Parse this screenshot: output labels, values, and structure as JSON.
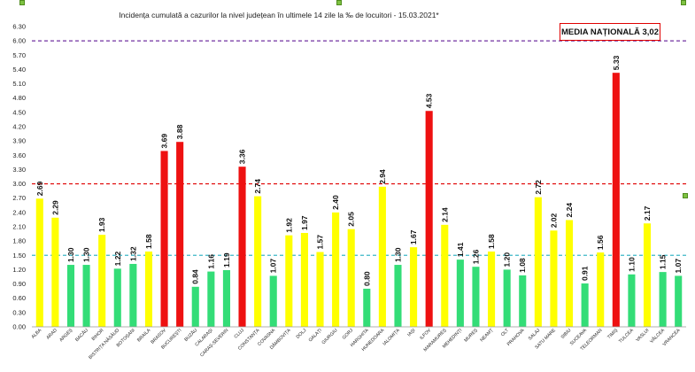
{
  "chart_data": {
    "type": "bar",
    "title": "Incidența cumulată a cazurilor la nivel județean în ultimele 14 zile    la ‰ de locuitori  - 15.03.2021*",
    "legend_text": "MEDIA NAȚIONALĂ 3,02",
    "categories": [
      "ALBA",
      "ARAD",
      "ARGEȘ",
      "BACĂU",
      "BIHOR",
      "BISTRIȚA NĂSĂUD",
      "BOTOȘANI",
      "BRAILA",
      "BRASOV",
      "BUCUREȘTI",
      "BUZĂU",
      "CALARAȘI",
      "CARAȘ-SEVERIN",
      "CLUJ",
      "CONSTANȚA",
      "COVASNA",
      "DÂMBOVIȚA",
      "DOLJ",
      "GALAȚI",
      "GIURGIU",
      "GORJ",
      "HARGHITA",
      "HUNEDOARA",
      "IALOMIȚA",
      "IAȘI",
      "ILFOV",
      "MARAMUREȘ",
      "MEHEDINȚI",
      "MUREȘ",
      "NEAMȚ",
      "OLT",
      "PRAHOVA",
      "SALAJ",
      "SATU MARE",
      "SIBIU",
      "SUCEAVA",
      "TELEORMAN",
      "TIMIȘ",
      "TULCEA",
      "VASLUI",
      "VÂLCEA",
      "VRANCEA"
    ],
    "values": [
      2.69,
      2.29,
      1.3,
      1.3,
      1.93,
      1.22,
      1.32,
      1.58,
      3.69,
      3.88,
      0.84,
      1.16,
      1.19,
      3.36,
      2.74,
      1.07,
      1.92,
      1.97,
      1.57,
      2.4,
      2.05,
      0.8,
      2.94,
      1.3,
      1.67,
      4.53,
      2.14,
      1.41,
      1.26,
      1.58,
      1.2,
      1.08,
      2.72,
      2.02,
      2.24,
      0.91,
      1.56,
      5.33,
      1.1,
      2.17,
      1.15,
      1.07
    ],
    "value_labels": [
      "2.69",
      "2.29",
      "1.30",
      "1.30",
      "1.93",
      "1.22",
      "1.32",
      "1.58",
      "3.69",
      "3.88",
      "0.84",
      "1.16",
      "1.19",
      "3.36",
      "2.74",
      "1.07",
      "1.92",
      "1.97",
      "1.57",
      "2.40",
      "2.05",
      "0.80",
      "2.94",
      "1.30",
      "1.67",
      "4.53",
      "2.14",
      "1.41",
      "1.26",
      "1.58",
      "1.20",
      "1.08",
      "2.72",
      "2.02",
      "2.24",
      "0.91",
      "1.56",
      "5.33",
      "1.10",
      "2.17",
      "1.15",
      "1.07"
    ],
    "yticks": [
      "0.00",
      "0.30",
      "0.60",
      "0.90",
      "1.20",
      "1.50",
      "1.80",
      "2.10",
      "2.40",
      "2.70",
      "3.00",
      "3.30",
      "3.60",
      "3.90",
      "4.20",
      "4.50",
      "4.80",
      "5.10",
      "5.40",
      "5.70",
      "6.00",
      "6.30"
    ],
    "ylim": [
      0,
      6.3
    ],
    "thresholds": [
      {
        "value": 1.5,
        "color": "#3cb8c8"
      },
      {
        "value": 3.0,
        "color": "#e00000"
      },
      {
        "value": 6.0,
        "color": "#7030a0"
      }
    ],
    "colors": {
      "low": "#33dd77",
      "mid": "#ffff00",
      "high": "#ee1111"
    },
    "color_rule": "green below 1.5, yellow 1.5-3.0, red above 3.0",
    "grid": false
  }
}
